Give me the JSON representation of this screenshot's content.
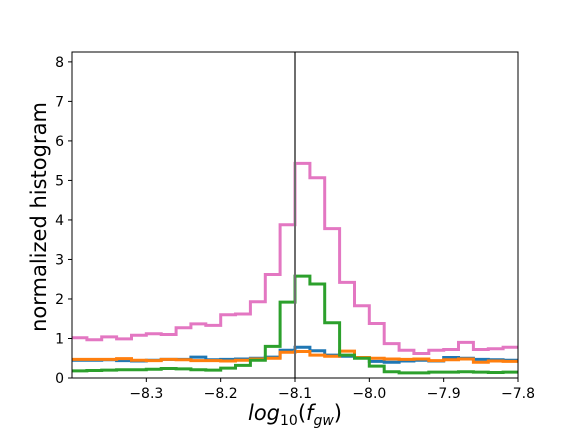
{
  "chart_data": {
    "type": "histogram",
    "xlabel_base": "log",
    "xlabel_sub": "10",
    "xlabel_paren_open": "(",
    "xlabel_var": "f",
    "xlabel_var_sub": "gw",
    "xlabel_paren_close": ")",
    "ylabel": "normalized histogram",
    "xlim": [
      -8.4,
      -7.8
    ],
    "ylim": [
      0,
      8.25
    ],
    "xticks": [
      -8.3,
      -8.2,
      -8.1,
      -8.0,
      -7.9,
      -7.8
    ],
    "xtick_labels": [
      "−8.3",
      "−8.2",
      "−8.1",
      "−8.0",
      "−7.9",
      "−7.8"
    ],
    "yticks": [
      0,
      1,
      2,
      3,
      4,
      5,
      6,
      7,
      8
    ],
    "ytick_labels": [
      "0",
      "1",
      "2",
      "3",
      "4",
      "5",
      "6",
      "7",
      "8"
    ],
    "vline_x": -8.1,
    "vline_color": "#6e6e6e",
    "bin_edges": [
      -8.4,
      -8.38,
      -8.36,
      -8.34,
      -8.32,
      -8.3,
      -8.28,
      -8.26,
      -8.24,
      -8.22,
      -8.2,
      -8.18,
      -8.16,
      -8.14,
      -8.12,
      -8.1,
      -8.08,
      -8.06,
      -8.04,
      -8.02,
      -8.0,
      -7.98,
      -7.96,
      -7.94,
      -7.92,
      -7.9,
      -7.88,
      -7.86,
      -7.84,
      -7.82,
      -7.8
    ],
    "series": [
      {
        "color": "#1f77b4",
        "values": [
          0.45,
          0.45,
          0.46,
          0.44,
          0.43,
          0.45,
          0.47,
          0.47,
          0.53,
          0.46,
          0.47,
          0.48,
          0.5,
          0.53,
          0.7,
          0.78,
          0.69,
          0.58,
          0.55,
          0.52,
          0.42,
          0.4,
          0.43,
          0.45,
          0.43,
          0.52,
          0.5,
          0.47,
          0.46,
          0.45
        ]
      },
      {
        "color": "#ff7f0e",
        "values": [
          0.47,
          0.47,
          0.47,
          0.49,
          0.45,
          0.44,
          0.47,
          0.46,
          0.44,
          0.44,
          0.43,
          0.45,
          0.48,
          0.5,
          0.65,
          0.67,
          0.58,
          0.55,
          0.68,
          0.52,
          0.5,
          0.48,
          0.47,
          0.48,
          0.44,
          0.46,
          0.48,
          0.4,
          0.43,
          0.42
        ]
      },
      {
        "color": "#2ca02c",
        "values": [
          0.18,
          0.19,
          0.2,
          0.21,
          0.21,
          0.22,
          0.24,
          0.23,
          0.21,
          0.2,
          0.25,
          0.32,
          0.45,
          0.8,
          1.92,
          2.58,
          2.38,
          1.4,
          0.58,
          0.5,
          0.3,
          0.16,
          0.13,
          0.13,
          0.15,
          0.15,
          0.16,
          0.15,
          0.14,
          0.15
        ]
      },
      {
        "color": "#e377c2",
        "values": [
          1.02,
          0.97,
          1.04,
          0.99,
          1.08,
          1.12,
          1.1,
          1.27,
          1.37,
          1.33,
          1.6,
          1.62,
          1.93,
          2.62,
          3.88,
          5.43,
          5.07,
          3.78,
          2.42,
          1.83,
          1.38,
          0.87,
          0.7,
          0.62,
          0.7,
          0.72,
          0.9,
          0.72,
          0.74,
          0.78
        ]
      }
    ]
  }
}
